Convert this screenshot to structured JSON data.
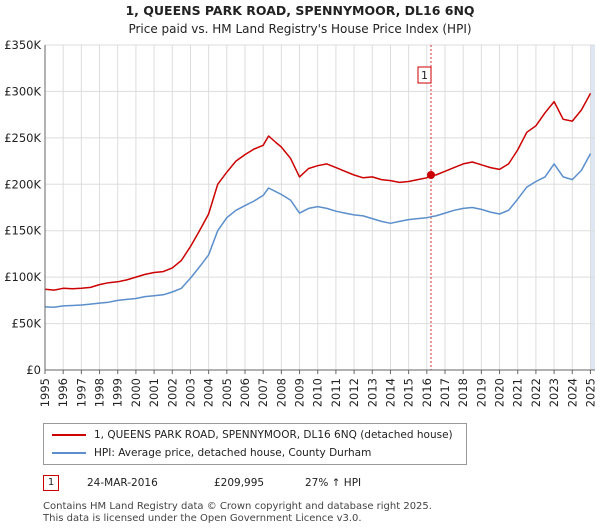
{
  "chart_data": {
    "type": "line",
    "title": "1, QUEENS PARK ROAD, SPENNYMOOR, DL16 6NQ",
    "subtitle": "Price paid vs. HM Land Registry's House Price Index (HPI)",
    "xlabel": "",
    "ylabel": "",
    "xlim": [
      1995,
      2025.25
    ],
    "ylim": [
      0,
      350000
    ],
    "y_ticks": [
      0,
      50000,
      100000,
      150000,
      200000,
      250000,
      300000,
      350000
    ],
    "y_tick_labels": [
      "£0",
      "£50K",
      "£100K",
      "£150K",
      "£200K",
      "£250K",
      "£300K",
      "£350K"
    ],
    "x_ticks": [
      1995,
      1996,
      1997,
      1998,
      1999,
      2000,
      2001,
      2002,
      2003,
      2004,
      2005,
      2006,
      2007,
      2008,
      2009,
      2010,
      2011,
      2012,
      2013,
      2014,
      2015,
      2016,
      2017,
      2018,
      2019,
      2020,
      2021,
      2022,
      2023,
      2024,
      2025
    ],
    "x_tick_labels": [
      "1995",
      "1996",
      "1997",
      "1998",
      "1999",
      "2000",
      "2001",
      "2002",
      "2003",
      "2004",
      "2005",
      "2006",
      "2007",
      "2008",
      "2009",
      "2010",
      "2011",
      "2012",
      "2013",
      "2014",
      "2015",
      "2016",
      "2017",
      "2018",
      "2019",
      "2020",
      "2021",
      "2022",
      "2023",
      "2024",
      "2025"
    ],
    "grid": true,
    "series": [
      {
        "name": "1, QUEENS PARK ROAD, SPENNYMOOR, DL16 6NQ (detached house)",
        "color": "#cc0000",
        "x": [
          1995.0,
          1995.5,
          1996.0,
          1996.5,
          1997.0,
          1997.5,
          1998.0,
          1998.5,
          1999.0,
          1999.5,
          2000.0,
          2000.5,
          2001.0,
          2001.5,
          2002.0,
          2002.5,
          2003.0,
          2003.5,
          2004.0,
          2004.5,
          2005.0,
          2005.5,
          2006.0,
          2006.5,
          2007.0,
          2007.3,
          2007.7,
          2008.0,
          2008.5,
          2009.0,
          2009.5,
          2010.0,
          2010.5,
          2011.0,
          2011.5,
          2012.0,
          2012.5,
          2013.0,
          2013.5,
          2014.0,
          2014.5,
          2015.0,
          2015.5,
          2016.0,
          2016.23,
          2016.5,
          2017.0,
          2017.5,
          2018.0,
          2018.5,
          2019.0,
          2019.5,
          2020.0,
          2020.5,
          2021.0,
          2021.5,
          2022.0,
          2022.5,
          2023.0,
          2023.5,
          2024.0,
          2024.5,
          2025.0
        ],
        "values": [
          87000,
          86000,
          88000,
          87500,
          88000,
          89000,
          92000,
          94000,
          95000,
          97000,
          100000,
          103000,
          105000,
          106000,
          110000,
          118000,
          133000,
          150000,
          168000,
          200000,
          213000,
          225000,
          232000,
          238000,
          242000,
          252000,
          245000,
          240000,
          228000,
          208000,
          217000,
          220000,
          222000,
          218000,
          214000,
          210000,
          207000,
          208000,
          205000,
          204000,
          202000,
          203000,
          205000,
          207000,
          209995,
          210000,
          214000,
          218000,
          222000,
          224000,
          221000,
          218000,
          216000,
          222000,
          237000,
          256000,
          263000,
          277000,
          289000,
          270000,
          268000,
          280000,
          298000
        ]
      },
      {
        "name": "HPI: Average price, detached house, County Durham",
        "color": "#5b8fcc",
        "x": [
          1995.0,
          1995.5,
          1996.0,
          1996.5,
          1997.0,
          1997.5,
          1998.0,
          1998.5,
          1999.0,
          1999.5,
          2000.0,
          2000.5,
          2001.0,
          2001.5,
          2002.0,
          2002.5,
          2003.0,
          2003.5,
          2004.0,
          2004.5,
          2005.0,
          2005.5,
          2006.0,
          2006.5,
          2007.0,
          2007.3,
          2007.7,
          2008.0,
          2008.5,
          2009.0,
          2009.5,
          2010.0,
          2010.5,
          2011.0,
          2011.5,
          2012.0,
          2012.5,
          2013.0,
          2013.5,
          2014.0,
          2014.5,
          2015.0,
          2015.5,
          2016.0,
          2016.23,
          2016.5,
          2017.0,
          2017.5,
          2018.0,
          2018.5,
          2019.0,
          2019.5,
          2020.0,
          2020.5,
          2021.0,
          2021.5,
          2022.0,
          2022.5,
          2023.0,
          2023.5,
          2024.0,
          2024.5,
          2025.0
        ],
        "values": [
          68000,
          67500,
          69000,
          69500,
          70000,
          71000,
          72000,
          73000,
          75000,
          76000,
          77000,
          79000,
          80000,
          81000,
          84000,
          88000,
          99000,
          111000,
          124000,
          150000,
          164000,
          172000,
          177000,
          182000,
          188000,
          196000,
          192000,
          189000,
          183000,
          169000,
          174000,
          176000,
          174000,
          171000,
          169000,
          167000,
          166000,
          163000,
          160000,
          158000,
          160000,
          162000,
          163000,
          164000,
          165000,
          166000,
          169000,
          172000,
          174000,
          175000,
          173000,
          170000,
          168000,
          172000,
          184000,
          197000,
          203000,
          208000,
          222000,
          208000,
          205000,
          215000,
          233000
        ]
      }
    ],
    "annotations": [
      {
        "label": "1",
        "x": 2016.23,
        "value": 209995
      }
    ]
  },
  "legend": {
    "items": [
      {
        "label": "1, QUEENS PARK ROAD, SPENNYMOOR, DL16 6NQ (detached house)",
        "color": "#cc0000"
      },
      {
        "label": "HPI: Average price, detached house, County Durham",
        "color": "#5b8fcc"
      }
    ]
  },
  "transactions": [
    {
      "id": "1",
      "date": "24-MAR-2016",
      "price": "£209,995",
      "delta": "27% ↑ HPI"
    }
  ],
  "footer": {
    "line1": "Contains HM Land Registry data © Crown copyright and database right 2025.",
    "line2": "This data is licensed under the Open Government Licence v3.0."
  },
  "colors": {
    "property_line": "#cc0000",
    "hpi_line": "#5b8fcc",
    "grid": "#dddddd",
    "plot_bg": "#ffffff",
    "shade": "#dde6f2"
  }
}
